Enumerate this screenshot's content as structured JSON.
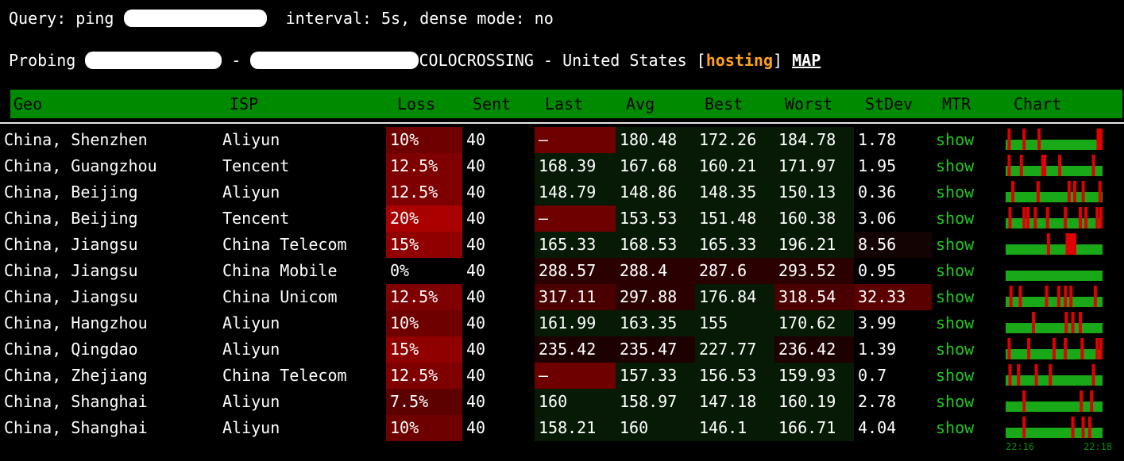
{
  "query_line": "Query: ping",
  "query_suffix": "interval: 5s, dense mode: no",
  "probing_label": "Probing",
  "probing_dash": "-",
  "probing_provider": "COLOCROSSING - United States [",
  "probing_tag": "hosting",
  "probing_close": "]",
  "map_link": "MAP",
  "columns": [
    "Geo",
    "ISP",
    "Loss",
    "Sent",
    "Last",
    "Avg",
    "Best",
    "Worst",
    "StDev",
    "MTR",
    "Chart"
  ],
  "show_label": "show",
  "colors": {
    "header_bg": "#008a00",
    "show_text": "#22c622",
    "chart_ok": "#18a818",
    "chart_loss": "#e00000",
    "accent": "#ffa11a"
  },
  "rows": [
    {
      "geo": "China, Shenzhen",
      "isp": "Aliyun",
      "loss": "10%",
      "sent": "40",
      "last": "–",
      "avg": "180.48",
      "best": "172.26",
      "worst": "184.78",
      "stdev": "1.78",
      "spikes": [
        2,
        18,
        34,
        97,
        100
      ]
    },
    {
      "geo": "China, Guangzhou",
      "isp": "Tencent",
      "loss": "12.5%",
      "sent": "40",
      "last": "168.39",
      "avg": "167.68",
      "best": "160.21",
      "worst": "171.97",
      "stdev": "1.95",
      "spikes": [
        2,
        15,
        38,
        40,
        56,
        92
      ]
    },
    {
      "geo": "China, Beijing",
      "isp": "Aliyun",
      "loss": "12.5%",
      "sent": "40",
      "last": "148.79",
      "avg": "148.86",
      "best": "148.35",
      "worst": "150.13",
      "stdev": "0.36",
      "spikes": [
        6,
        33,
        66,
        72,
        81,
        99
      ]
    },
    {
      "geo": "China, Beijing",
      "isp": "Tencent",
      "loss": "20%",
      "sent": "40",
      "last": "–",
      "avg": "153.53",
      "best": "151.48",
      "worst": "160.38",
      "stdev": "3.06",
      "spikes": [
        3,
        18,
        22,
        30,
        43,
        62,
        78,
        84,
        96,
        100
      ]
    },
    {
      "geo": "China, Jiangsu",
      "isp": "China Telecom",
      "loss": "15%",
      "sent": "40",
      "last": "165.33",
      "avg": "168.53",
      "best": "165.33",
      "worst": "196.21",
      "stdev": "8.56",
      "spikes": [
        44,
        64,
        66,
        68,
        70,
        72
      ]
    },
    {
      "geo": "China, Jiangsu",
      "isp": "China Mobile",
      "loss": "0%",
      "sent": "40",
      "last": "288.57",
      "avg": "288.4",
      "best": "287.6",
      "worst": "293.52",
      "stdev": "0.95",
      "spikes": []
    },
    {
      "geo": "China, Jiangsu",
      "isp": "China Unicom",
      "loss": "12.5%",
      "sent": "40",
      "last": "317.11",
      "avg": "297.88",
      "best": "176.84",
      "worst": "318.54",
      "stdev": "32.33",
      "spikes": [
        4,
        14,
        42,
        55,
        62,
        68,
        94
      ]
    },
    {
      "geo": "China, Hangzhou",
      "isp": "Aliyun",
      "loss": "10%",
      "sent": "40",
      "last": "161.99",
      "avg": "163.35",
      "best": "155",
      "worst": "170.62",
      "stdev": "3.99",
      "spikes": [
        28,
        63,
        70,
        78
      ]
    },
    {
      "geo": "China, Qingdao",
      "isp": "Aliyun",
      "loss": "15%",
      "sent": "40",
      "last": "235.42",
      "avg": "235.47",
      "best": "227.77",
      "worst": "236.42",
      "stdev": "1.39",
      "spikes": [
        2,
        23,
        50,
        62,
        80,
        96,
        100
      ]
    },
    {
      "geo": "China, Zhejiang",
      "isp": "China Telecom",
      "loss": "12.5%",
      "sent": "40",
      "last": "–",
      "avg": "157.33",
      "best": "156.53",
      "worst": "159.93",
      "stdev": "0.7",
      "spikes": [
        3,
        12,
        31,
        46,
        92
      ]
    },
    {
      "geo": "China, Shanghai",
      "isp": "Aliyun",
      "loss": "7.5%",
      "sent": "40",
      "last": "160",
      "avg": "158.97",
      "best": "147.18",
      "worst": "160.19",
      "stdev": "2.78",
      "spikes": [
        18,
        79,
        90
      ]
    },
    {
      "geo": "China, Shanghai",
      "isp": "Aliyun",
      "loss": "10%",
      "sent": "40",
      "last": "158.21",
      "avg": "160",
      "best": "146.1",
      "worst": "166.71",
      "stdev": "4.04",
      "spikes": [
        18,
        70,
        81,
        88
      ]
    }
  ],
  "time_start": "22:16",
  "time_end": "22:18"
}
